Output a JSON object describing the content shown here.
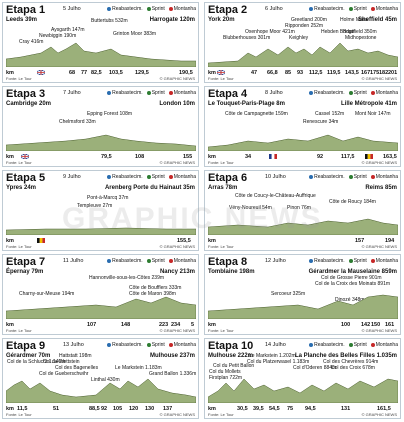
{
  "legend": {
    "refuel": "Reabastecim.",
    "sprint": "Sprint",
    "climb": "Montanha"
  },
  "source": "Fonte: Le Tour",
  "credit": "© GRAPHIC NEWS",
  "km_label": "km",
  "watermark": "GRAPHIC NEWS",
  "stages": [
    {
      "title": "Etapa 1",
      "date": "5 Julho",
      "start": "Leeds 39m",
      "end": "Harrogate 120m",
      "labels": [
        "Aysgarth 147m",
        "Buttertubs 532m",
        "Newbiggin 190m",
        "Cray 416m",
        "Grinton Moor 383m"
      ],
      "kms": [
        "68",
        "77",
        "82,5",
        "103,5",
        "129,5",
        "190,5"
      ]
    },
    {
      "title": "Etapa 2",
      "date": "6 Julho",
      "start": "York 20m",
      "end": "Sheffield 45m",
      "labels": [
        "Greetland 200m",
        "Holme Moss",
        "Ripponden 252m",
        "Oxenhope Moor 421m",
        "Hebden Bridge",
        "Blubberhouses 301m",
        "Keighley",
        "Bradfield 350m",
        "Midhopestone"
      ],
      "kms": [
        "47",
        "66,8",
        "85",
        "93",
        "112,5",
        "119,5",
        "143,5",
        "167",
        "175",
        "182",
        "201"
      ]
    },
    {
      "title": "Etapa 3",
      "date": "7 Julho",
      "start": "Cambridge 20m",
      "end": "London 10m",
      "labels": [
        "Epping Forest 108m",
        "Chelmsford 33m"
      ],
      "kms": [
        "79,5",
        "108",
        "155"
      ]
    },
    {
      "title": "Etapa 4",
      "date": "8 Julho",
      "start": "Le Touquet-Paris-Plage 8m",
      "end": "Lille Métropole 41m",
      "labels": [
        "Côte de Campagnette 159m",
        "Cassel 152m",
        "Renescure 34m",
        "Mont Noir 147m"
      ],
      "kms": [
        "34",
        "92",
        "117,5",
        "163,5"
      ]
    },
    {
      "title": "Etapa 5",
      "date": "9 Julho",
      "start": "Ypres 24m",
      "end": "Arenberg Porte du Hainaut 35m",
      "labels": [
        "Pont-à-Marcq 37m",
        "Templeuve 27m"
      ],
      "kms": [
        "155,5"
      ]
    },
    {
      "title": "Etapa 6",
      "date": "10 Julho",
      "start": "Arras 78m",
      "end": "Reims 85m",
      "labels": [
        "Côte de Coucy-le-Château-Auffrique",
        "Côte de Roucy 184m",
        "Vény-Noureuil 54m",
        "Pinon 76m"
      ],
      "kms": [
        "157",
        "194"
      ]
    },
    {
      "title": "Etapa 7",
      "date": "11 Julho",
      "start": "Épernay 79m",
      "end": "Nancy 213m",
      "labels": [
        "Hannonville-sous-les-Côtes 239m",
        "Côte de Boufflers 333m",
        "Côte de Maron 398m",
        "Charny-sur-Meuse 194m"
      ],
      "kms": [
        "107",
        "148",
        "223",
        "234",
        "5"
      ]
    },
    {
      "title": "Etapa 8",
      "date": "12 Julho",
      "start": "Tomblaine 198m",
      "end": "Gérardmer la Mauselaine 859m",
      "labels": [
        "Col de Grosse Pierre 901m",
        "Col de la Croix des Moinats 891m",
        "Sercoeur 325m",
        "Dinozé 348m"
      ],
      "kms": [
        "100",
        "142",
        "150",
        "161"
      ]
    },
    {
      "title": "Etapa 9",
      "date": "13 Julho",
      "start": "Gérardmer 70m",
      "end": "Mulhouse 237m",
      "labels": [
        "Hattstatt 198m",
        "Col de la Schlucht 1.140m",
        "Col du Wettstein",
        "Col des Bagenelles",
        "Le Markstein 1.183m",
        "Linthal 430m",
        "Grand Ballon 1.336m",
        "Col de Gueberschwihr"
      ],
      "kms": [
        "11,5",
        "51",
        "88,5",
        "92",
        "105",
        "120",
        "130",
        "137"
      ]
    },
    {
      "title": "Etapa 10",
      "date": "14 Julho",
      "start": "Mulhouse 222m",
      "end": "La Planche des Belles Filles 1.035m",
      "labels": [
        "Le Markstein 1.202m",
        "Col du Petit Ballon",
        "Col du Platzerwasel 1.183m",
        "Col des Chevrères 914m",
        "Col d'Oderen 884m",
        "Col des Croix 678m",
        "Firstplan 722m",
        "Col du Mollets"
      ],
      "kms": [
        "30,5",
        "39,5",
        "54,5",
        "75",
        "94,5",
        "131",
        "161,5"
      ]
    }
  ]
}
